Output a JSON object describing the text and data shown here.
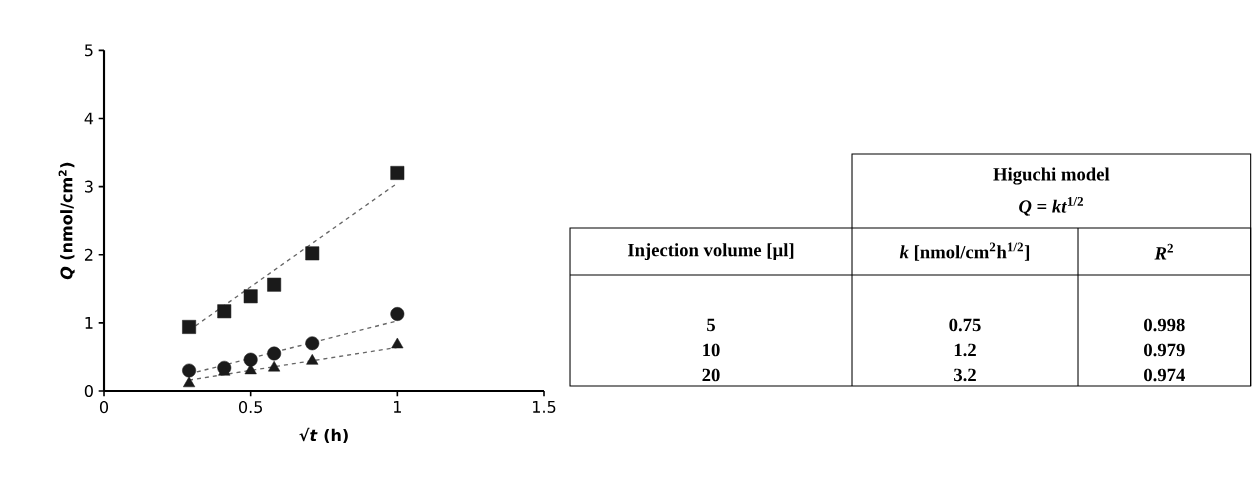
{
  "chart_data": [
    {
      "type": "scatter",
      "xlabel": "√*t* (h)",
      "ylabel": "*Q* (nmol/cm$^{2}$)",
      "xlim": [
        0,
        1.5
      ],
      "ylim": [
        0,
        5
      ],
      "xticks": [
        0,
        0.5,
        1,
        1.5
      ],
      "yticks": [
        0,
        1,
        2,
        3,
        4,
        5
      ],
      "grid": false,
      "series": [
        {
          "type": "scatter",
          "marker": "square",
          "color": "#1a1a1a",
          "x": [
            0.29,
            0.41,
            0.5,
            0.58,
            0.71,
            1.0
          ],
          "values": [
            0.94,
            1.17,
            1.39,
            1.56,
            2.02,
            3.2
          ]
        },
        {
          "type": "scatter",
          "marker": "circle",
          "color": "#1a1a1a",
          "x": [
            0.29,
            0.41,
            0.5,
            0.58,
            0.71,
            1.0
          ],
          "values": [
            0.3,
            0.34,
            0.46,
            0.55,
            0.7,
            1.13
          ]
        },
        {
          "type": "scatter",
          "marker": "triangle",
          "color": "#1a1a1a",
          "x": [
            0.29,
            0.41,
            0.5,
            0.58,
            0.71,
            1.0
          ],
          "values": [
            0.11,
            0.28,
            0.3,
            0.34,
            0.44,
            0.68
          ]
        },
        {
          "type": "line",
          "line_style": "dashed",
          "color": "#666666",
          "x": [
            0.29,
            1.0
          ],
          "values": [
            0.89,
            3.05
          ]
        },
        {
          "type": "line",
          "line_style": "dashed",
          "color": "#666666",
          "x": [
            0.29,
            1.0
          ],
          "values": [
            0.25,
            1.03
          ]
        },
        {
          "type": "line",
          "line_style": "dashed",
          "color": "#666666",
          "x": [
            0.29,
            1.0
          ],
          "values": [
            0.16,
            0.64
          ]
        }
      ]
    },
    {
      "type": "other",
      "title": "Higuchi model",
      "subtitle": "*Q* = *kt*$^{1/2}$",
      "annotations": [
        "Injection volume [µl]",
        "*k* [nmol/cm$^{2}$h$^{1/2}$]",
        "*R*$^{2}$",
        "5",
        "0.75",
        "0.998",
        "10",
        "1.2",
        "0.979",
        "20",
        "3.2",
        "0.974"
      ]
    }
  ]
}
